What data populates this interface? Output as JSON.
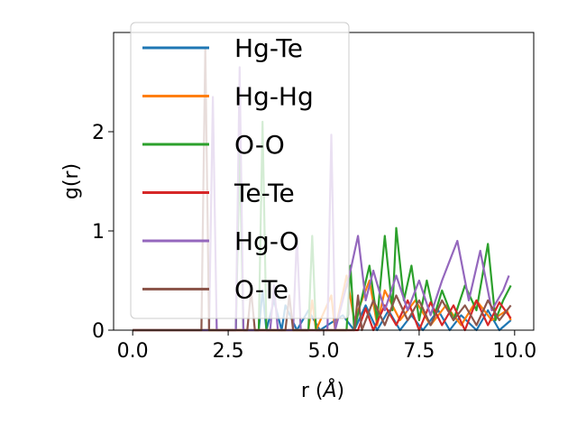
{
  "chart_data": {
    "type": "line",
    "title": "",
    "xlabel": "r (",
    "xlabel_unit": "Å",
    "xlabel_close": ")",
    "ylabel": "g(r)",
    "xlim": [
      -0.5,
      10.5
    ],
    "ylim": [
      0,
      3.0
    ],
    "xticks": [
      0.0,
      2.5,
      5.0,
      7.5,
      10.0
    ],
    "xtick_labels": [
      "0.0",
      "2.5",
      "5.0",
      "7.5",
      "10.0"
    ],
    "yticks": [
      0,
      1,
      2
    ],
    "ytick_labels": [
      "0",
      "1",
      "2"
    ],
    "grid": false,
    "legend_position": "upper-left",
    "series": [
      {
        "name": "Hg-Te",
        "color": "#1f77b4",
        "x": [
          0,
          3.3,
          3.4,
          3.5,
          3.7,
          3.9,
          4.0,
          4.3,
          4.6,
          4.9,
          5.5,
          5.8,
          6.1,
          6.4,
          6.7,
          7.0,
          7.3,
          7.6,
          8.0,
          8.3,
          8.6,
          9.0,
          9.3,
          9.6,
          9.9
        ],
        "y": [
          0,
          0,
          0.4,
          0,
          0.3,
          0,
          0.25,
          0,
          0.2,
          0,
          0.15,
          0,
          0.25,
          0,
          0.2,
          0,
          0.15,
          0,
          0.2,
          0,
          0.15,
          0,
          0.2,
          0,
          0.1
        ]
      },
      {
        "name": "Hg-Hg",
        "color": "#ff7f0e",
        "x": [
          0,
          4.6,
          4.7,
          4.8,
          5.2,
          5.3,
          5.6,
          5.8,
          6.2,
          6.4,
          6.6,
          7.0,
          7.4,
          7.8,
          8.2,
          8.6,
          9.0,
          9.4,
          9.8,
          9.9
        ],
        "y": [
          0,
          0,
          0.3,
          0,
          0.35,
          0,
          0.55,
          0.1,
          0.5,
          0.05,
          0.4,
          0.1,
          0.3,
          0.05,
          0.25,
          0.05,
          0.3,
          0.1,
          0.2,
          0.1
        ]
      },
      {
        "name": "O-O",
        "color": "#2ca02c",
        "x": [
          0,
          2.7,
          2.8,
          2.9,
          3.3,
          3.4,
          3.5,
          4.6,
          4.7,
          4.8,
          5.6,
          5.7,
          5.8,
          6.2,
          6.4,
          6.6,
          6.8,
          6.9,
          7.1,
          7.3,
          7.5,
          7.7,
          7.9,
          8.1,
          8.4,
          8.7,
          9.0,
          9.3,
          9.5,
          9.7,
          9.9
        ],
        "y": [
          0,
          0,
          1.8,
          0,
          0,
          2.1,
          0,
          0,
          0.95,
          0,
          0,
          0.65,
          0,
          0.65,
          0.1,
          0.95,
          0.2,
          1.03,
          0.3,
          0.65,
          0.1,
          0.5,
          0.15,
          0.4,
          0.1,
          0.45,
          0.2,
          0.87,
          0.1,
          0.3,
          0.45
        ]
      },
      {
        "name": "Te-Te",
        "color": "#d62728",
        "x": [
          0,
          5.9,
          6.1,
          6.3,
          6.6,
          6.9,
          7.2,
          7.5,
          7.8,
          8.1,
          8.4,
          8.7,
          9.0,
          9.3,
          9.6,
          9.9
        ],
        "y": [
          0,
          0,
          0.22,
          0,
          0.25,
          0.05,
          0.3,
          0,
          0.28,
          0.05,
          0.25,
          0,
          0.3,
          0.05,
          0.28,
          0.12
        ]
      },
      {
        "name": "Hg-O",
        "color": "#9467bd",
        "x": [
          0,
          2.0,
          2.1,
          2.2,
          2.7,
          2.8,
          2.9,
          3.6,
          3.7,
          3.8,
          4.2,
          4.3,
          4.4,
          5.1,
          5.2,
          5.3,
          5.7,
          5.9,
          6.1,
          6.3,
          6.6,
          6.9,
          7.2,
          7.5,
          7.8,
          8.1,
          8.5,
          8.8,
          9.1,
          9.4,
          9.7,
          9.85
        ],
        "y": [
          0,
          0,
          2.35,
          0,
          0,
          2.65,
          0,
          0,
          0.45,
          0,
          0,
          0.95,
          0,
          0,
          1.97,
          0,
          0.6,
          0.95,
          0.3,
          0.6,
          0.2,
          0.55,
          0.2,
          0.5,
          0.15,
          0.5,
          0.9,
          0.3,
          0.8,
          0.2,
          0.4,
          0.55
        ]
      },
      {
        "name": "O-Te",
        "color": "#8c564b",
        "x": [
          0,
          1.8,
          1.9,
          2.0,
          3.0,
          3.1,
          3.2,
          4.0,
          4.1,
          4.2,
          5.8,
          5.9,
          6.0,
          6.3,
          6.6,
          6.9,
          7.2,
          7.5,
          7.8,
          8.1,
          8.4,
          8.7,
          9.0,
          9.3,
          9.6,
          9.9
        ],
        "y": [
          0,
          0,
          2.85,
          0,
          0,
          0.4,
          0,
          0,
          0.35,
          0,
          0,
          0.35,
          0,
          0.3,
          0.05,
          0.35,
          0.1,
          0.3,
          0.05,
          0.3,
          0.1,
          0.25,
          0.05,
          0.3,
          0.1,
          0.25
        ]
      }
    ]
  }
}
